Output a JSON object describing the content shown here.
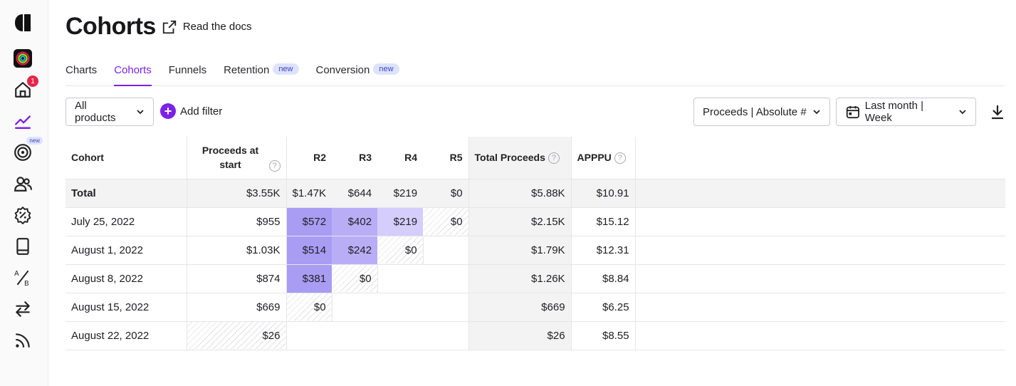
{
  "sidebar": {
    "items": [
      {
        "name": "logo-icon"
      },
      {
        "name": "app-icon"
      },
      {
        "name": "home-icon",
        "badge": "1"
      },
      {
        "name": "charts-icon"
      },
      {
        "name": "target-icon",
        "badge": "new"
      },
      {
        "name": "customers-icon"
      },
      {
        "name": "offers-icon"
      },
      {
        "name": "paywalls-icon"
      },
      {
        "name": "experiments-icon"
      },
      {
        "name": "transfers-icon"
      },
      {
        "name": "feed-icon"
      }
    ]
  },
  "header": {
    "title": "Cohorts",
    "docs_link": "Read the docs"
  },
  "tabs": [
    {
      "label": "Charts",
      "active": false
    },
    {
      "label": "Cohorts",
      "active": true
    },
    {
      "label": "Funnels",
      "active": false
    },
    {
      "label": "Retention",
      "badge": "new",
      "active": false
    },
    {
      "label": "Conversion",
      "badge": "new",
      "active": false
    }
  ],
  "filters": {
    "products": "All products",
    "add_filter": "Add filter",
    "metric": "Proceeds | Absolute #",
    "date_range": "Last month | Week"
  },
  "table": {
    "headers": {
      "cohort": "Cohort",
      "start": "Proceeds at start",
      "r2": "R2",
      "r3": "R3",
      "r4": "R4",
      "r5": "R5",
      "total": "Total Proceeds",
      "apppu": "APPPU",
      "help": "?"
    },
    "total_row": {
      "cohort": "Total",
      "start": "$3.55K",
      "r2": "$1.47K",
      "r3": "$644",
      "r4": "$219",
      "r5": "$0",
      "total": "$5.88K",
      "apppu": "$10.91"
    },
    "rows": [
      {
        "cohort": "July 25, 2022",
        "start": "$955",
        "r2": "$572",
        "r3": "$402",
        "r4": "$219",
        "r5": "$0",
        "total": "$2.15K",
        "apppu": "$15.12"
      },
      {
        "cohort": "August 1, 2022",
        "start": "$1.03K",
        "r2": "$514",
        "r3": "$242",
        "r4": "$0",
        "r5": "",
        "total": "$1.79K",
        "apppu": "$12.31"
      },
      {
        "cohort": "August 8, 2022",
        "start": "$874",
        "r2": "$381",
        "r3": "$0",
        "r4": "",
        "r5": "",
        "total": "$1.26K",
        "apppu": "$8.84"
      },
      {
        "cohort": "August 15, 2022",
        "start": "$669",
        "r2": "$0",
        "r3": "",
        "r4": "",
        "r5": "",
        "total": "$669",
        "apppu": "$6.25"
      },
      {
        "cohort": "August 22, 2022",
        "start": "$26",
        "r2": "",
        "r3": "",
        "r4": "",
        "r5": "",
        "total": "$26",
        "apppu": "$8.55"
      }
    ]
  },
  "colors": {
    "accent": "#7b22e8",
    "heat_high": "#a99cf3",
    "heat_mid": "#b9aef6",
    "heat_low": "#d5cdfb",
    "badge_red": "#e5254b"
  }
}
